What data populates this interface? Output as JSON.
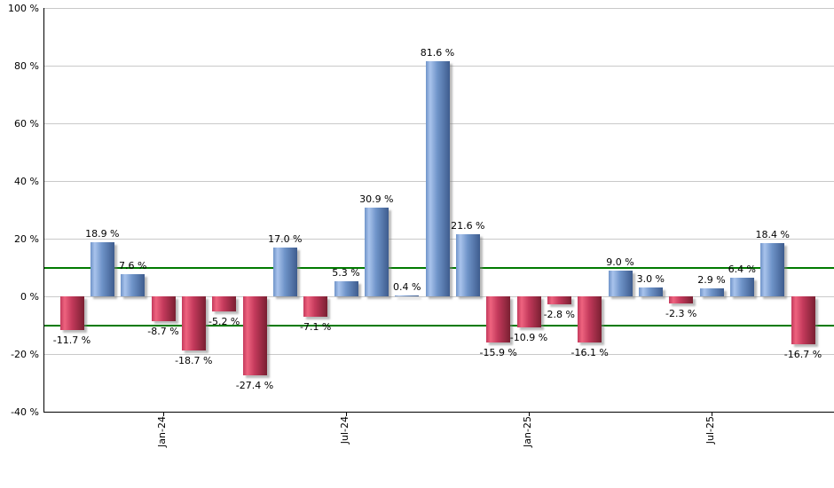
{
  "chart_data": {
    "type": "bar",
    "title": "",
    "xlabel": "",
    "ylabel": "",
    "unit": "%",
    "grid": true,
    "legend": null,
    "ylim": [
      -40,
      100
    ],
    "bars": [
      {
        "value": -11.7,
        "label": "-11.7 %"
      },
      {
        "value": 18.9,
        "label": "18.9 %"
      },
      {
        "value": 7.6,
        "label": "7.6 %"
      },
      {
        "value": -8.7,
        "label": "-8.7 %"
      },
      {
        "value": -18.7,
        "label": "-18.7 %"
      },
      {
        "value": -5.2,
        "label": "-5.2 %"
      },
      {
        "value": -27.4,
        "label": "-27.4 %"
      },
      {
        "value": 17.0,
        "label": "17.0 %"
      },
      {
        "value": -7.1,
        "label": "-7.1 %"
      },
      {
        "value": 5.3,
        "label": "5.3 %"
      },
      {
        "value": 30.9,
        "label": "30.9 %"
      },
      {
        "value": 0.4,
        "label": "0.4 %"
      },
      {
        "value": 81.6,
        "label": "81.6 %"
      },
      {
        "value": 21.6,
        "label": "21.6 %"
      },
      {
        "value": -15.9,
        "label": "-15.9 %"
      },
      {
        "value": -10.9,
        "label": "-10.9 %"
      },
      {
        "value": -2.8,
        "label": "-2.8 %"
      },
      {
        "value": -16.1,
        "label": "-16.1 %"
      },
      {
        "value": 9.0,
        "label": "9.0 %"
      },
      {
        "value": 3.0,
        "label": "3.0 %"
      },
      {
        "value": -2.3,
        "label": "-2.3 %"
      },
      {
        "value": 2.9,
        "label": "2.9 %"
      },
      {
        "value": 6.4,
        "label": "6.4 %"
      },
      {
        "value": 18.4,
        "label": "18.4 %"
      },
      {
        "value": -16.7,
        "label": "-16.7 %"
      }
    ],
    "yticks": [
      {
        "value": 100,
        "label": "100 %"
      },
      {
        "value": 80,
        "label": "80 %"
      },
      {
        "value": 60,
        "label": "60 %"
      },
      {
        "value": 40,
        "label": "40 %"
      },
      {
        "value": 20,
        "label": "20 %"
      },
      {
        "value": 0,
        "label": "0 %"
      },
      {
        "value": -20,
        "label": "-20 %"
      },
      {
        "value": -40,
        "label": "-40 %"
      }
    ],
    "xticks": [
      {
        "label": "Jan-24",
        "bar_index": 3
      },
      {
        "label": "Jul-24",
        "bar_index": 9
      },
      {
        "label": "Jan-25",
        "bar_index": 15
      },
      {
        "label": "Jul-25",
        "bar_index": 21
      }
    ],
    "threshold_lines": [
      {
        "value": 10,
        "color": "#007a00"
      },
      {
        "value": -10,
        "color": "#007a00"
      }
    ],
    "colors": {
      "positive_bar": "#6f94c9",
      "positive_bar_light": "#a9c3ec",
      "positive_bar_dark": "#3e5c8e",
      "negative_bar": "#c43a5c",
      "negative_bar_light": "#ee637f",
      "negative_bar_dark": "#791f31",
      "gridline": "#c9c9c9",
      "axis": "#000000",
      "label_text": "#000000",
      "background": "#ffffff"
    }
  }
}
